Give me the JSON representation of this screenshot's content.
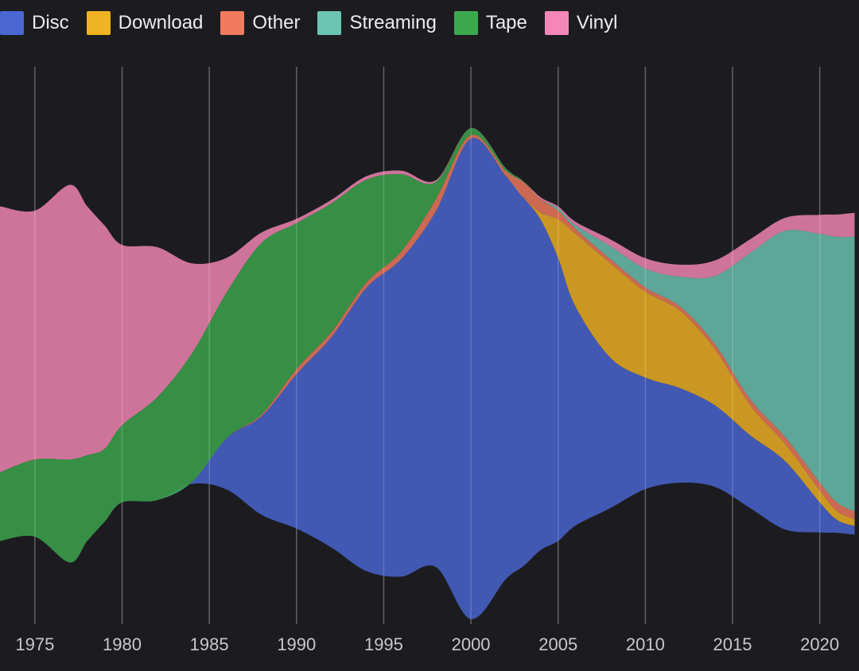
{
  "chart_data": {
    "type": "area",
    "subtype": "streamgraph",
    "title": "",
    "xlabel": "",
    "ylabel": "",
    "xlim": [
      1973,
      2022
    ],
    "legend_position": "top-left",
    "grid": "vertical",
    "x": [
      1973,
      1975,
      1977,
      1978,
      1979,
      1980,
      1982,
      1984,
      1986,
      1988,
      1990,
      1992,
      1994,
      1996,
      1998,
      2000,
      2002,
      2003,
      2004,
      2005,
      2006,
      2008,
      2010,
      2012,
      2014,
      2016,
      2018,
      2020,
      2021,
      2022
    ],
    "series": [
      {
        "name": "Disc",
        "color": "#4a67d4",
        "values": [
          0,
          0,
          0,
          0,
          0,
          0,
          0,
          2,
          60,
          115,
          180,
          245,
          330,
          370,
          415,
          560,
          470,
          430,
          385,
          330,
          255,
          175,
          130,
          110,
          95,
          85,
          80,
          35,
          15,
          10
        ]
      },
      {
        "name": "Download",
        "color": "#f0b323",
        "values": [
          0,
          0,
          0,
          0,
          0,
          0,
          0,
          0,
          0,
          0,
          0,
          0,
          0,
          0,
          0,
          0,
          0,
          0,
          8,
          45,
          85,
          110,
          100,
          90,
          65,
          35,
          20,
          14,
          10,
          8
        ]
      },
      {
        "name": "Other",
        "color": "#f27a5e",
        "values": [
          0,
          0,
          0,
          0,
          0,
          0,
          0,
          0,
          0,
          2,
          6,
          6,
          6,
          9,
          14,
          4,
          6,
          18,
          16,
          10,
          6,
          5,
          5,
          5,
          6,
          7,
          8,
          9,
          10,
          9
        ]
      },
      {
        "name": "Streaming",
        "color": "#6cc4b2",
        "values": [
          0,
          0,
          0,
          0,
          0,
          0,
          0,
          0,
          0,
          0,
          0,
          0,
          0,
          0,
          0,
          0,
          0,
          0,
          0,
          3,
          4,
          15,
          22,
          35,
          80,
          170,
          240,
          290,
          310,
          320
        ]
      },
      {
        "name": "Tape",
        "color": "#3ca84e",
        "values": [
          80,
          90,
          120,
          100,
          85,
          90,
          120,
          150,
          170,
          200,
          170,
          150,
          120,
          90,
          20,
          8,
          3,
          1,
          0,
          0,
          0,
          0,
          0,
          0,
          0,
          0,
          0,
          0,
          0,
          0
        ]
      },
      {
        "name": "Vinyl",
        "color": "#f587b6",
        "values": [
          310,
          290,
          320,
          290,
          260,
          210,
          175,
          105,
          40,
          12,
          5,
          4,
          4,
          4,
          2,
          0,
          0,
          0,
          2,
          2,
          4,
          8,
          12,
          14,
          18,
          16,
          15,
          22,
          26,
          28
        ]
      }
    ]
  },
  "legend": {
    "items": [
      {
        "label": "Disc",
        "color": "#4a67d4"
      },
      {
        "label": "Download",
        "color": "#f0b323"
      },
      {
        "label": "Other",
        "color": "#f27a5e"
      },
      {
        "label": "Streaming",
        "color": "#6cc4b2"
      },
      {
        "label": "Tape",
        "color": "#3ca84e"
      },
      {
        "label": "Vinyl",
        "color": "#f587b6"
      }
    ]
  },
  "xaxis": {
    "ticks": [
      1975,
      1980,
      1985,
      1990,
      1995,
      2000,
      2005,
      2010,
      2015,
      2020
    ]
  }
}
